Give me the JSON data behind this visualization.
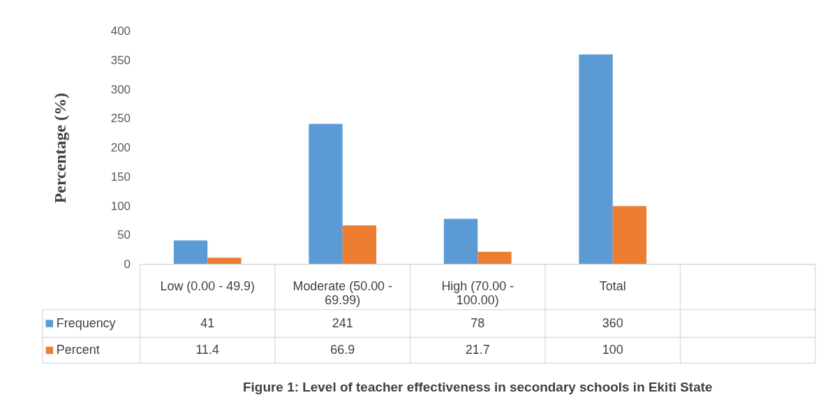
{
  "chart_data": {
    "type": "bar",
    "title": "Figure 1: Level of teacher effectiveness in secondary schools in Ekiti State",
    "ylabel": "Percentage (%)",
    "categories": [
      "Low (0.00 - 49.9)",
      "Moderate (50.00 - 69.99)",
      "High (70.00 - 100.00)",
      "Total",
      null
    ],
    "series": [
      {
        "name": "Frequency",
        "color": "#5b9bd5",
        "values": [
          41,
          241,
          78,
          360,
          null
        ]
      },
      {
        "name": "Percent",
        "color": "#ed7d31",
        "values": [
          11.4,
          66.9,
          21.7,
          100,
          null
        ]
      }
    ],
    "ylim": [
      0,
      400
    ],
    "yticks": [
      0,
      50,
      100,
      150,
      200,
      250,
      300,
      350,
      400
    ],
    "grid": false,
    "legend": "bottom",
    "data_labels": true
  }
}
